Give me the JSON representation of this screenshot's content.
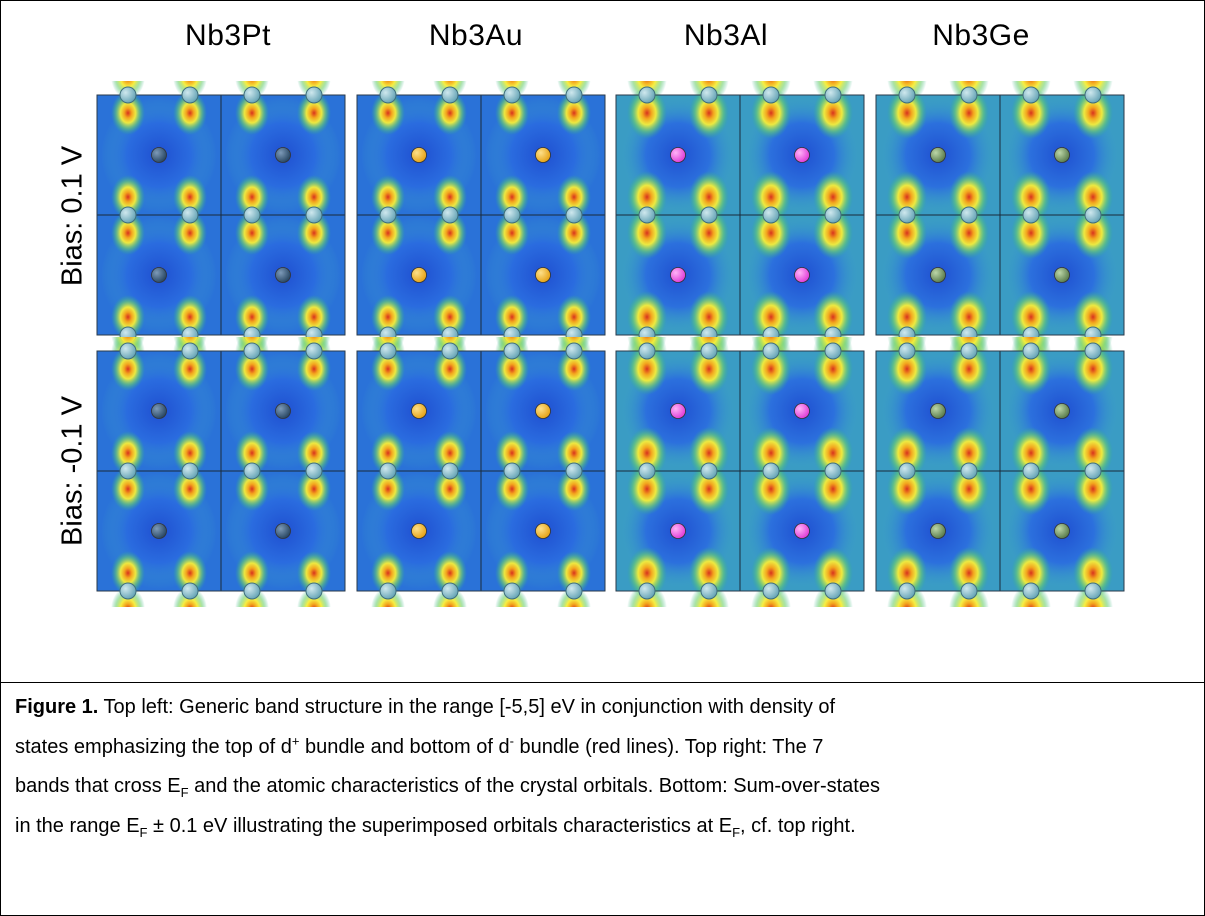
{
  "columns": [
    {
      "title": "Nb3Pt",
      "atom_color": "#2c4a66",
      "atom_hl": "#7d9ab8"
    },
    {
      "title": "Nb3Au",
      "atom_color": "#e6a419",
      "atom_hl": "#fde08a"
    },
    {
      "title": "Nb3Al",
      "atom_color": "#e040d8",
      "atom_hl": "#ffb3f7"
    },
    {
      "title": "Nb3Ge",
      "atom_color": "#5d7f4f",
      "atom_hl": "#bcd6a8"
    }
  ],
  "rows": [
    {
      "label": "Bias: 0.1 V"
    },
    {
      "label": "Bias: -0.1 V"
    }
  ],
  "colors": {
    "background_map": "#2a72d8",
    "nb_atom": "#6aa7b8",
    "nb_atom_highlight": "#cfe8ee"
  },
  "caption": {
    "label": "Figure 1.",
    "line1_a": " Top left: Generic band structure in the range [-5,5] eV in conjunction with density of",
    "line2_a": "states emphasizing the top of d",
    "line2_sup1": "+",
    "line2_b": " bundle and bottom of d",
    "line2_sup2": "-",
    "line2_c": " bundle (red lines). Top right: The 7",
    "line3_a": "bands that cross E",
    "line3_sub1": "F",
    "line3_b": " and the atomic characteristics of the crystal orbitals. Bottom: Sum-over-states",
    "line4_a": "in the range E",
    "line4_sub1": "F",
    "line4_b": " ± 0.1 eV illustrating the superimposed orbitals characteristics at E",
    "line4_sub2": "F",
    "line4_c": ", cf. top right."
  }
}
